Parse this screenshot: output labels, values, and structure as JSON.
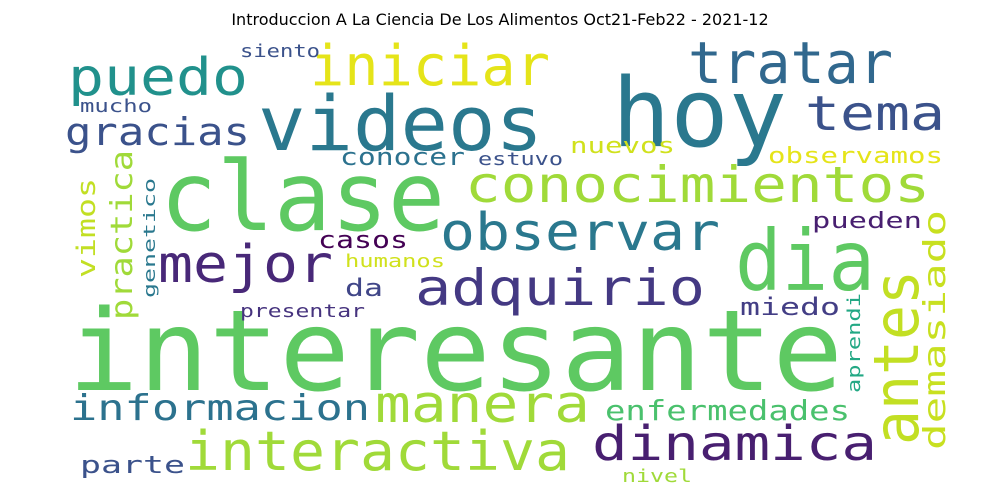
{
  "title": "Introduccion A La Ciencia De Los Alimentos Oct21-Feb22 - 2021-12",
  "words": [
    {
      "text": "interesante",
      "color": "#5ec962"
    },
    {
      "text": "hoy",
      "color": "#2a788e"
    },
    {
      "text": "videos",
      "color": "#2a788e"
    },
    {
      "text": "clase",
      "color": "#5ec962"
    },
    {
      "text": "dia",
      "color": "#5ec962"
    },
    {
      "text": "conocimientos",
      "color": "#a0da39"
    },
    {
      "text": "iniciar",
      "color": "#e5e419"
    },
    {
      "text": "tratar",
      "color": "#31688e"
    },
    {
      "text": "puedo",
      "color": "#21918c"
    },
    {
      "text": "tema",
      "color": "#3b528b"
    },
    {
      "text": "observar",
      "color": "#2a788e"
    },
    {
      "text": "adquirio",
      "color": "#443983"
    },
    {
      "text": "mejor",
      "color": "#482878"
    },
    {
      "text": "antes",
      "color": "#c2df23"
    },
    {
      "text": "manera",
      "color": "#a0da39"
    },
    {
      "text": "dinamica",
      "color": "#481f70"
    },
    {
      "text": "interactiva",
      "color": "#a0da39"
    },
    {
      "text": "informacion",
      "color": "#2c728e"
    },
    {
      "text": "gracias",
      "color": "#3b528b"
    },
    {
      "text": "demasiado",
      "color": "#c8e020"
    },
    {
      "text": "enfermedades",
      "color": "#4ac16d"
    },
    {
      "text": "practica",
      "color": "#a0da39"
    },
    {
      "text": "vimos",
      "color": "#c2df23"
    },
    {
      "text": "conocer",
      "color": "#2c728e"
    },
    {
      "text": "casos",
      "color": "#440154"
    },
    {
      "text": "miedo",
      "color": "#433e85"
    },
    {
      "text": "parte",
      "color": "#3b528b"
    },
    {
      "text": "observamos",
      "color": "#e5e419"
    },
    {
      "text": "nuevos",
      "color": "#d0e11c"
    },
    {
      "text": "pueden",
      "color": "#481f70"
    },
    {
      "text": "da",
      "color": "#404688"
    },
    {
      "text": "presentar",
      "color": "#46337e"
    },
    {
      "text": "humanos",
      "color": "#d0e11c"
    },
    {
      "text": "estuvo",
      "color": "#3b528b"
    },
    {
      "text": "siento",
      "color": "#3b528b"
    },
    {
      "text": "mucho",
      "color": "#3b528b"
    },
    {
      "text": "genetico",
      "color": "#2a788e"
    },
    {
      "text": "aprendi",
      "color": "#22a884"
    },
    {
      "text": "nivel",
      "color": "#a0da39"
    }
  ]
}
